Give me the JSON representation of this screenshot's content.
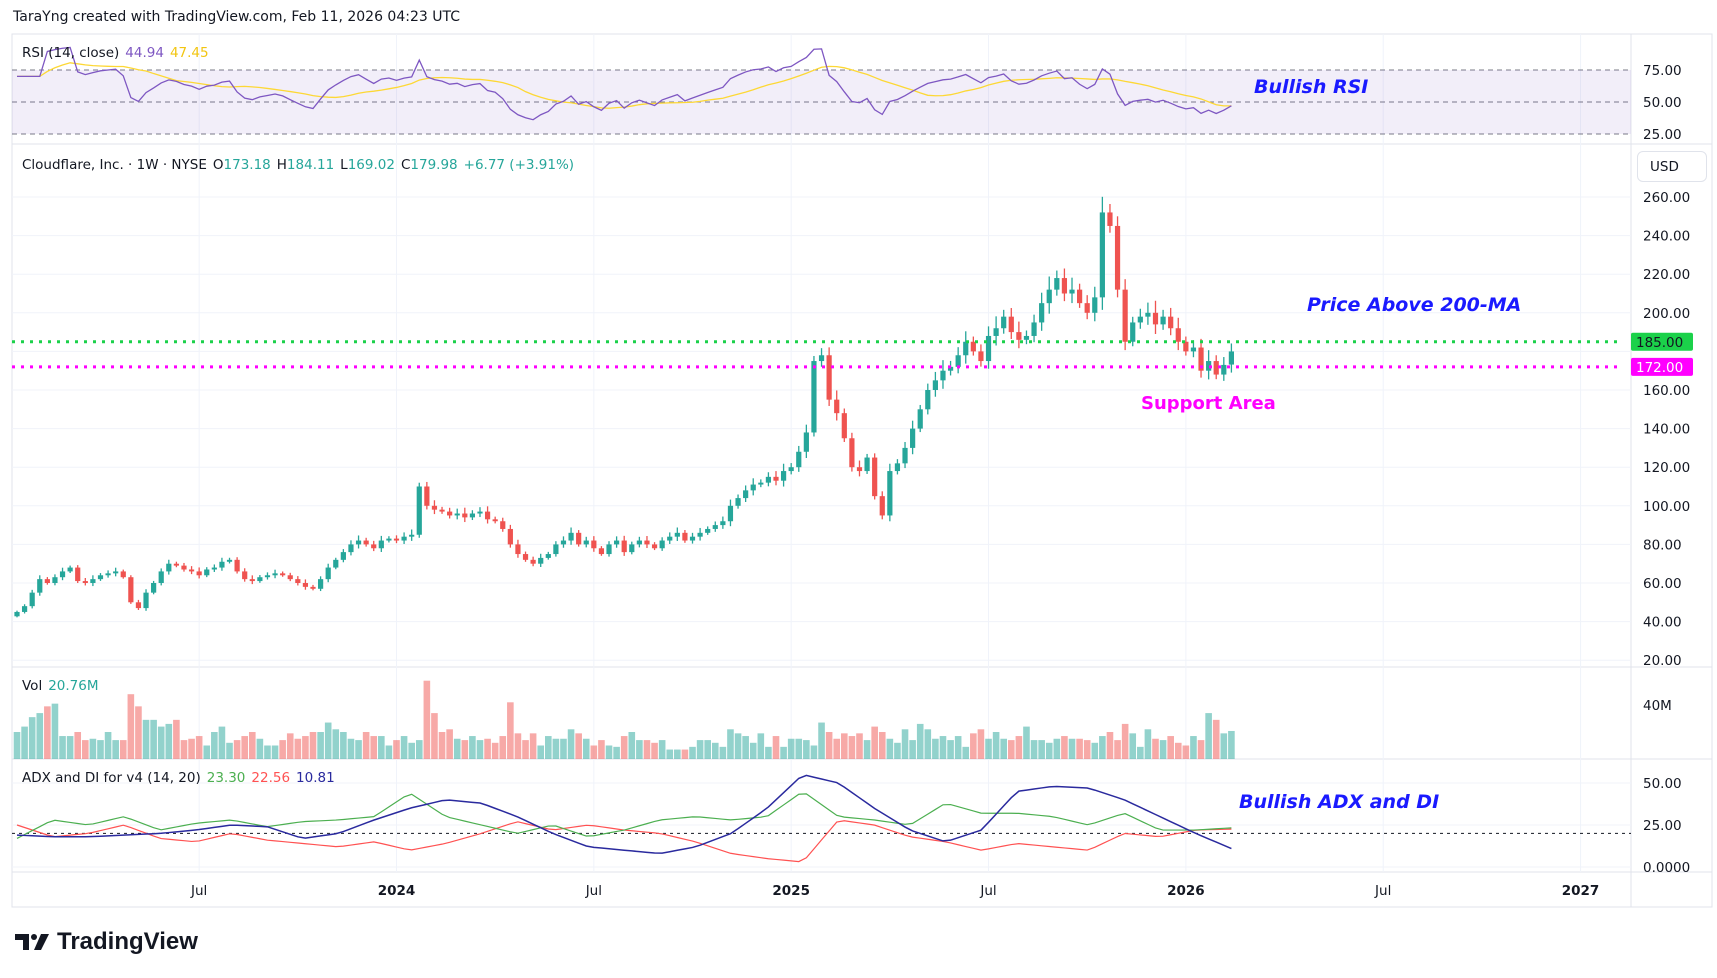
{
  "header": "TaraYng created with TradingView.com, Feb 11, 2026 04:23 UTC",
  "logo": "TradingView",
  "symbol": {
    "name": "Cloudflare, Inc. · 1W · NYSE",
    "o_label": "O",
    "o": "173.18",
    "h_label": "H",
    "h": "184.11",
    "l_label": "L",
    "l": "169.02",
    "c_label": "C",
    "c": "179.98",
    "change": "+6.77 (+3.91%)"
  },
  "currency": "USD",
  "rsi": {
    "title": "RSI (14, close)",
    "value": "44.94",
    "ma": "47.45",
    "ticks": [
      "75.00",
      "50.00",
      "25.00"
    ]
  },
  "volume": {
    "title": "Vol",
    "value": "20.76M",
    "tick": "40M"
  },
  "adx": {
    "title": "ADX and DI for v4 (14, 20)",
    "plus_di": "23.30",
    "minus_di": "22.56",
    "adx": "10.81",
    "ticks": [
      "50.00",
      "25.00",
      "0.0000"
    ]
  },
  "annotations": {
    "rsi": "Bullish RSI",
    "price": "Price Above 200-MA",
    "support": "Support Area",
    "adx": "Bullish ADX and DI"
  },
  "levels": [
    {
      "value": 185,
      "label": "185.00",
      "color": "#1bd14a"
    },
    {
      "value": 172,
      "label": "172.00",
      "color": "#ff00ff"
    }
  ],
  "colors": {
    "up": "#26a69a",
    "down": "#ef5350",
    "rsi": "#7e57c2",
    "rsi_ma": "#fdd835",
    "plus_di": "#4caf50",
    "minus_di": "#ff5252",
    "adx": "#2a2a9e"
  },
  "chart_data": {
    "type": "candlestick",
    "title": "Cloudflare, Inc. · 1W · NYSE",
    "start_week": "2023-01-16",
    "price_ticks": [
      "260.00",
      "240.00",
      "220.00",
      "200.00",
      "160.00",
      "140.00",
      "120.00",
      "100.00",
      "80.00",
      "60.00",
      "40.00",
      "20.00"
    ],
    "ylim": [
      20,
      260
    ],
    "time_ticks": [
      {
        "label": "Jul",
        "week": 24
      },
      {
        "label": "2024",
        "week": 50
      },
      {
        "label": "Jul",
        "week": 76
      },
      {
        "label": "2025",
        "week": 102
      },
      {
        "label": "Jul",
        "week": 128
      },
      {
        "label": "2026",
        "week": 154
      },
      {
        "label": "Jul",
        "week": 180
      },
      {
        "label": "2027",
        "week": 206
      }
    ],
    "closes": [
      45,
      48,
      55,
      62,
      60,
      63,
      66,
      68,
      61,
      60,
      62,
      64,
      65,
      66,
      63,
      50,
      47,
      55,
      60,
      66,
      70,
      69,
      67,
      66,
      64,
      67,
      68,
      71,
      72,
      66,
      62,
      61,
      63,
      64,
      65,
      64,
      62,
      60,
      58,
      57,
      62,
      68,
      72,
      76,
      80,
      82,
      80,
      78,
      82,
      83,
      82,
      84,
      85,
      110,
      100,
      98,
      97,
      95,
      96,
      94,
      96,
      97,
      93,
      92,
      88,
      80,
      75,
      72,
      70,
      73,
      75,
      80,
      82,
      86,
      80,
      82,
      78,
      75,
      80,
      82,
      76,
      80,
      82,
      80,
      78,
      82,
      84,
      86,
      82,
      84,
      86,
      88,
      90,
      92,
      100,
      104,
      108,
      111,
      112,
      115,
      113,
      118,
      120,
      128,
      138,
      175,
      178,
      155,
      148,
      135,
      120,
      118,
      125,
      105,
      95,
      118,
      122,
      130,
      140,
      150,
      160,
      165,
      170,
      172,
      178,
      185,
      180,
      175,
      188,
      192,
      198,
      190,
      186,
      188,
      195,
      205,
      212,
      218,
      210,
      212,
      205,
      200,
      208,
      252,
      245,
      212,
      185,
      195,
      198,
      200,
      194,
      198,
      192,
      185,
      180,
      182,
      170,
      175,
      168,
      173,
      179.98
    ],
    "last_ohlc": {
      "open": 173.18,
      "high": 184.11,
      "low": 169.02,
      "close": 179.98
    },
    "volumes_m": [
      20,
      24,
      31,
      34,
      39,
      41,
      17,
      17,
      20,
      14,
      15,
      14,
      20,
      14,
      14,
      48,
      39,
      29,
      29,
      24,
      26,
      29,
      14,
      15,
      17,
      10,
      20,
      24,
      12,
      14,
      17,
      20,
      15,
      10,
      10,
      14,
      19,
      15,
      17,
      20,
      20,
      27,
      22,
      20,
      15,
      14,
      20,
      17,
      17,
      10,
      14,
      17,
      12,
      14,
      58,
      34,
      20,
      22,
      15,
      14,
      17,
      14,
      15,
      12,
      17,
      42,
      19,
      14,
      19,
      10,
      17,
      15,
      15,
      22,
      19,
      15,
      10,
      14,
      10,
      9,
      17,
      20,
      14,
      14,
      12,
      14,
      7,
      7,
      7,
      9,
      14,
      14,
      12,
      9,
      22,
      19,
      17,
      12,
      19,
      9,
      17,
      9,
      15,
      15,
      14,
      10,
      27,
      20,
      15,
      19,
      17,
      19,
      14,
      24,
      20,
      15,
      12,
      22,
      14,
      26,
      22,
      15,
      17,
      14,
      17,
      9,
      19,
      22,
      15,
      20,
      15,
      14,
      17,
      24,
      14,
      14,
      12,
      15,
      17,
      15,
      15,
      14,
      12,
      17,
      20,
      14,
      26,
      19,
      9,
      22,
      15,
      14,
      17,
      12,
      10,
      17,
      14,
      34,
      29,
      19,
      20.76
    ],
    "adx_monthly": {
      "adx": [
        19,
        18,
        18,
        19,
        20,
        22,
        25,
        24,
        17,
        20,
        28,
        35,
        40,
        38,
        30,
        20,
        12,
        10,
        8,
        12,
        20,
        35,
        55,
        50,
        35,
        22,
        15,
        22,
        45,
        48,
        47,
        40,
        30,
        20,
        11
      ],
      "plus_di": [
        17,
        28,
        25,
        30,
        22,
        26,
        28,
        24,
        27,
        28,
        30,
        44,
        30,
        25,
        20,
        25,
        18,
        22,
        28,
        30,
        28,
        30,
        45,
        30,
        28,
        25,
        38,
        32,
        32,
        30,
        25,
        32,
        22,
        22,
        23.3
      ],
      "minus_di": [
        25,
        18,
        20,
        25,
        17,
        15,
        20,
        16,
        14,
        12,
        15,
        10,
        14,
        20,
        27,
        22,
        25,
        22,
        20,
        15,
        8,
        5,
        3,
        28,
        25,
        18,
        15,
        10,
        14,
        12,
        10,
        20,
        18,
        22,
        22.56
      ]
    }
  }
}
